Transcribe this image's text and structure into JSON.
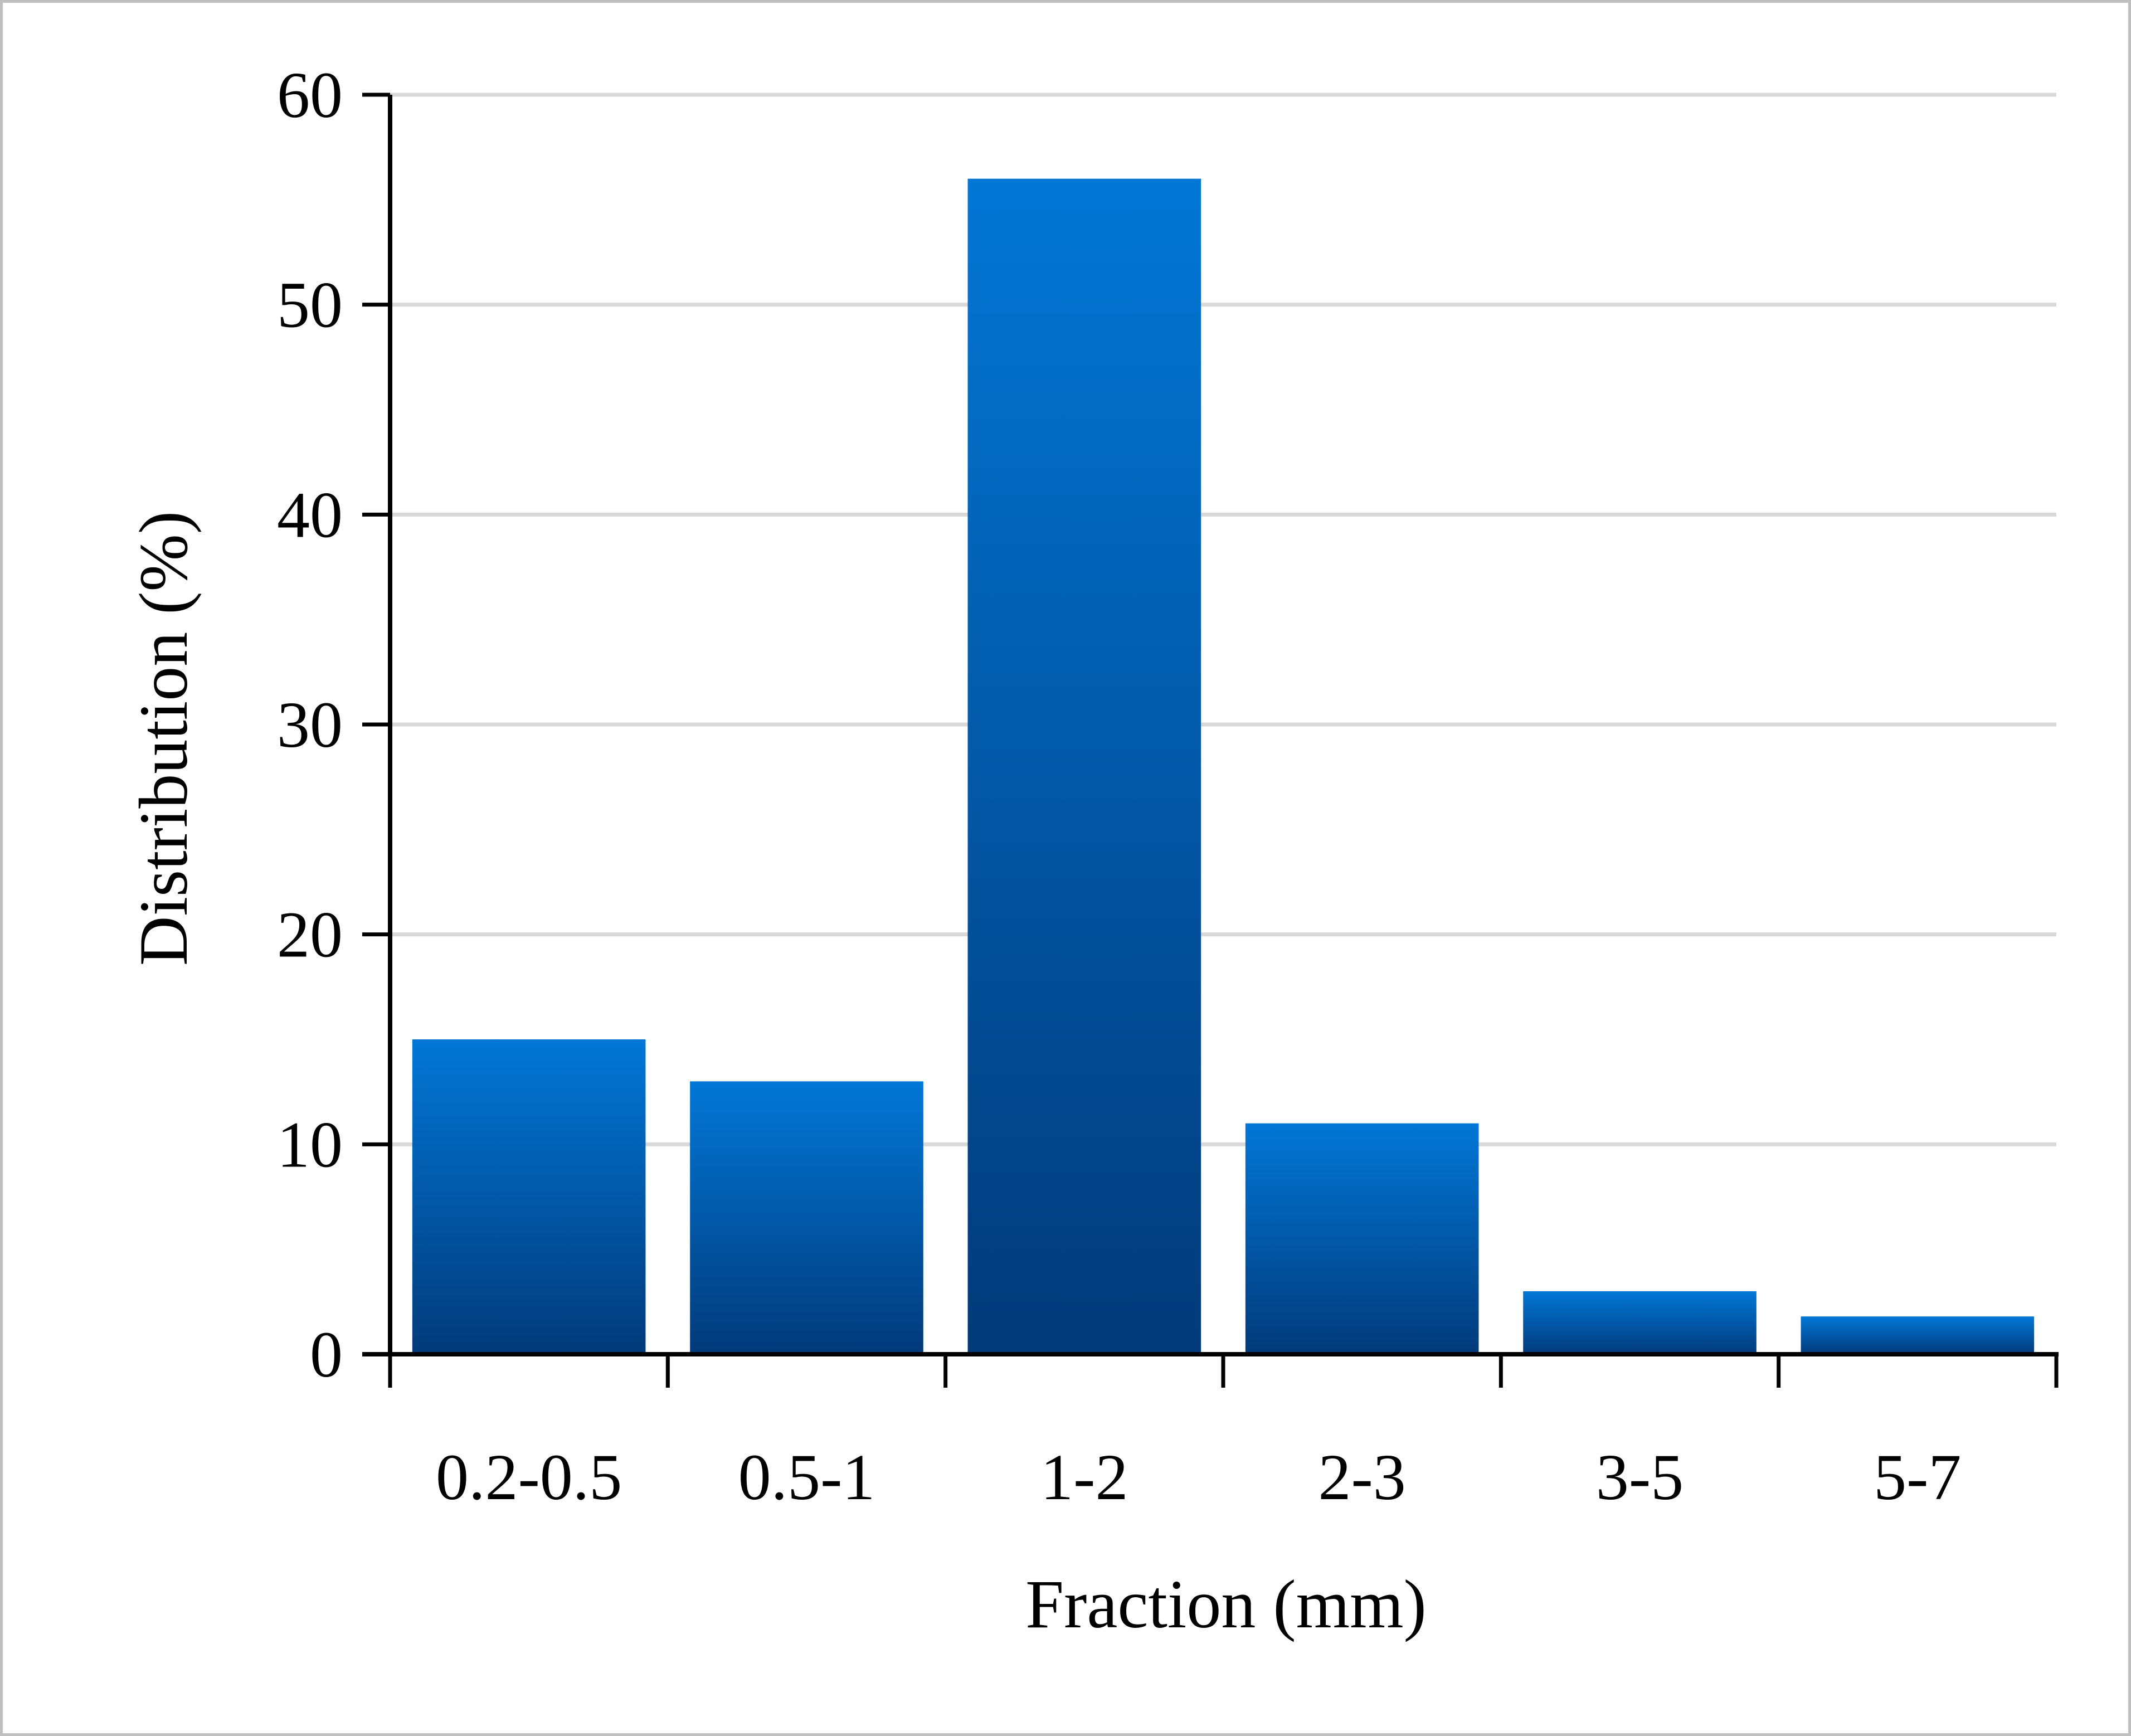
{
  "chart_data": {
    "type": "bar",
    "categories": [
      "0.2-0.5",
      "0.5-1",
      "1-2",
      "2-3",
      "3-5",
      "5-7"
    ],
    "values": [
      15,
      13,
      56,
      11,
      3,
      1.8
    ],
    "xlabel": "Fraction (mm)",
    "ylabel": "Distribution (%)",
    "ylim": [
      0,
      60
    ],
    "yticks": [
      "0",
      "10",
      "20",
      "30",
      "40",
      "50",
      "60"
    ],
    "grid": true,
    "legend": "none",
    "colors": {
      "bar_top": "#0277d6",
      "bar_bottom": "#023a7a",
      "grid": "#d9d9d9",
      "axis": "#000000"
    }
  }
}
